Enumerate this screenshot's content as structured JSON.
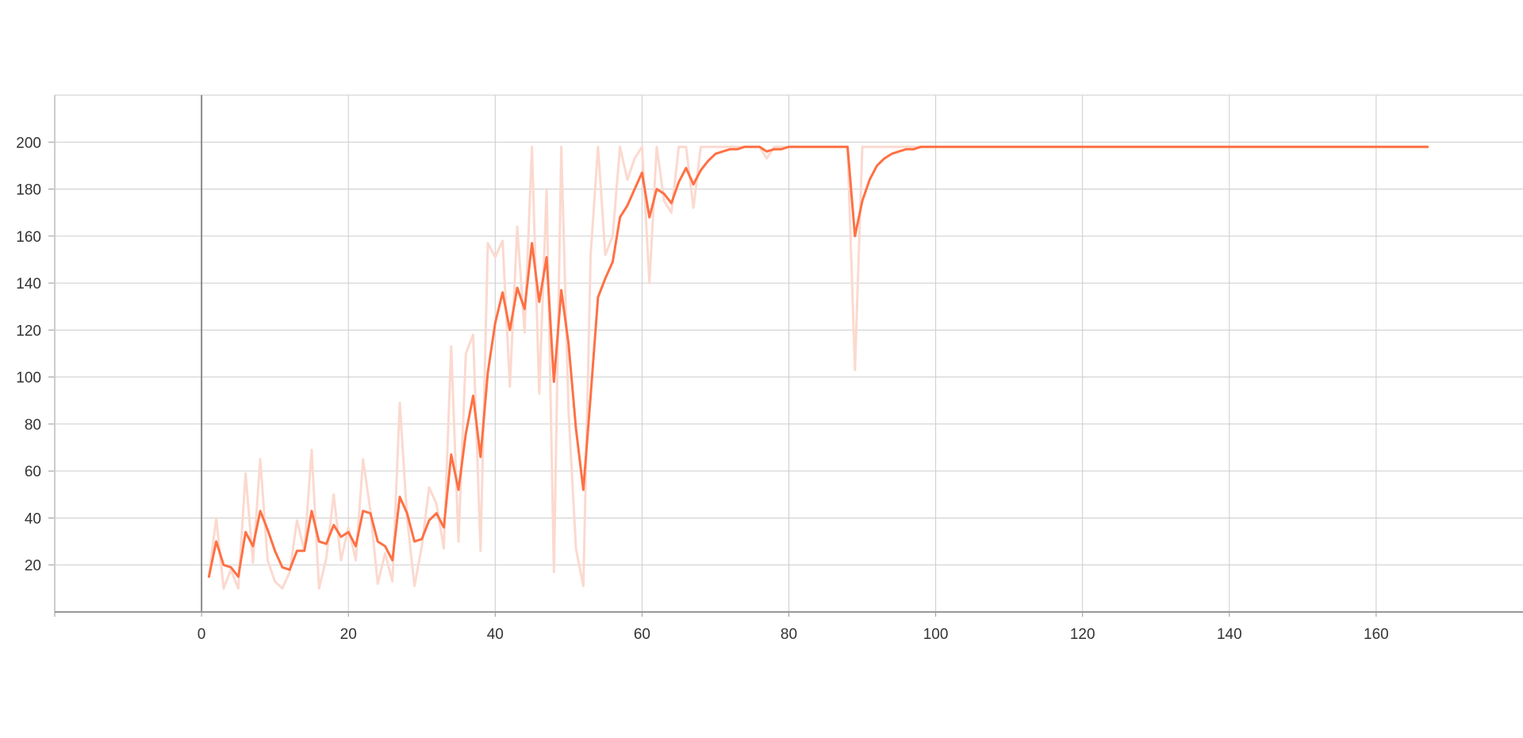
{
  "chart_data": {
    "type": "line",
    "title": "",
    "xlabel": "",
    "ylabel": "",
    "xlim": [
      -20,
      180
    ],
    "ylim": [
      0,
      220
    ],
    "x_ticks": [
      0,
      20,
      40,
      60,
      80,
      100,
      120,
      140,
      160
    ],
    "y_ticks": [
      20,
      40,
      60,
      80,
      100,
      120,
      140,
      160,
      180,
      200
    ],
    "grid": true,
    "legend": "none",
    "colors": {
      "smoothed": "#ff7043",
      "raw": "#fbd9cf",
      "grid": "#cccccc",
      "axis": "#999999",
      "zero_line": "#8a8a8a"
    },
    "series": [
      {
        "role": "raw",
        "x": [
          1,
          2,
          3,
          4,
          5,
          6,
          7,
          8,
          9,
          10,
          11,
          12,
          13,
          14,
          15,
          16,
          17,
          18,
          19,
          20,
          21,
          22,
          23,
          24,
          25,
          26,
          27,
          28,
          29,
          30,
          31,
          32,
          33,
          34,
          35,
          36,
          37,
          38,
          39,
          40,
          41,
          42,
          43,
          44,
          45,
          46,
          47,
          48,
          49,
          50,
          51,
          52,
          53,
          54,
          55,
          56,
          57,
          58,
          59,
          60,
          61,
          62,
          63,
          64,
          65,
          66,
          67,
          68,
          69,
          70,
          71,
          72,
          73,
          74,
          75,
          76,
          77,
          78,
          79,
          80,
          81,
          82,
          83,
          84,
          85,
          86,
          87,
          88,
          89,
          90,
          91,
          92,
          93,
          94,
          95,
          96,
          97,
          98,
          99,
          100,
          167
        ],
        "y": [
          15,
          40,
          10,
          18,
          10,
          59,
          21,
          65,
          22,
          13,
          10,
          17,
          39,
          26,
          69,
          10,
          23,
          50,
          22,
          36,
          22,
          65,
          43,
          12,
          25,
          13,
          89,
          40,
          11,
          28,
          53,
          46,
          27,
          113,
          30,
          110,
          118,
          26,
          157,
          151,
          158,
          96,
          164,
          119,
          198,
          93,
          180,
          17,
          198,
          85,
          27,
          11,
          152,
          198,
          152,
          160,
          198,
          184,
          193,
          198,
          140,
          198,
          175,
          170,
          198,
          198,
          172,
          198,
          198,
          198,
          198,
          198,
          198,
          198,
          198,
          198,
          193,
          198,
          198,
          198,
          198,
          198,
          198,
          198,
          198,
          198,
          198,
          198,
          103,
          198,
          198,
          198,
          198,
          198,
          198,
          198,
          198,
          198,
          198,
          198,
          198
        ]
      },
      {
        "role": "smoothed",
        "x": [
          1,
          2,
          3,
          4,
          5,
          6,
          7,
          8,
          9,
          10,
          11,
          12,
          13,
          14,
          15,
          16,
          17,
          18,
          19,
          20,
          21,
          22,
          23,
          24,
          25,
          26,
          27,
          28,
          29,
          30,
          31,
          32,
          33,
          34,
          35,
          36,
          37,
          38,
          39,
          40,
          41,
          42,
          43,
          44,
          45,
          46,
          47,
          48,
          49,
          50,
          51,
          52,
          53,
          54,
          55,
          56,
          57,
          58,
          59,
          60,
          61,
          62,
          63,
          64,
          65,
          66,
          67,
          68,
          69,
          70,
          71,
          72,
          73,
          74,
          75,
          76,
          77,
          78,
          79,
          80,
          81,
          82,
          83,
          84,
          85,
          86,
          87,
          88,
          89,
          90,
          91,
          92,
          93,
          94,
          95,
          96,
          97,
          98,
          99,
          100,
          167
        ],
        "y": [
          15,
          30,
          20,
          19,
          15,
          34,
          28,
          43,
          35,
          26,
          19,
          18,
          26,
          26,
          43,
          30,
          29,
          37,
          32,
          34,
          28,
          43,
          42,
          30,
          28,
          22,
          49,
          42,
          30,
          31,
          39,
          42,
          36,
          67,
          52,
          76,
          92,
          66,
          102,
          123,
          136,
          120,
          138,
          129,
          157,
          132,
          151,
          98,
          137,
          114,
          78,
          52,
          92,
          134,
          142,
          149,
          168,
          173,
          180,
          187,
          168,
          180,
          178,
          174,
          183,
          189,
          182,
          188,
          192,
          195,
          196,
          197,
          197,
          198,
          198,
          198,
          196,
          197,
          197,
          198,
          198,
          198,
          198,
          198,
          198,
          198,
          198,
          198,
          160,
          175,
          184,
          190,
          193,
          195,
          196,
          197,
          197,
          198,
          198,
          198,
          198
        ]
      }
    ]
  }
}
